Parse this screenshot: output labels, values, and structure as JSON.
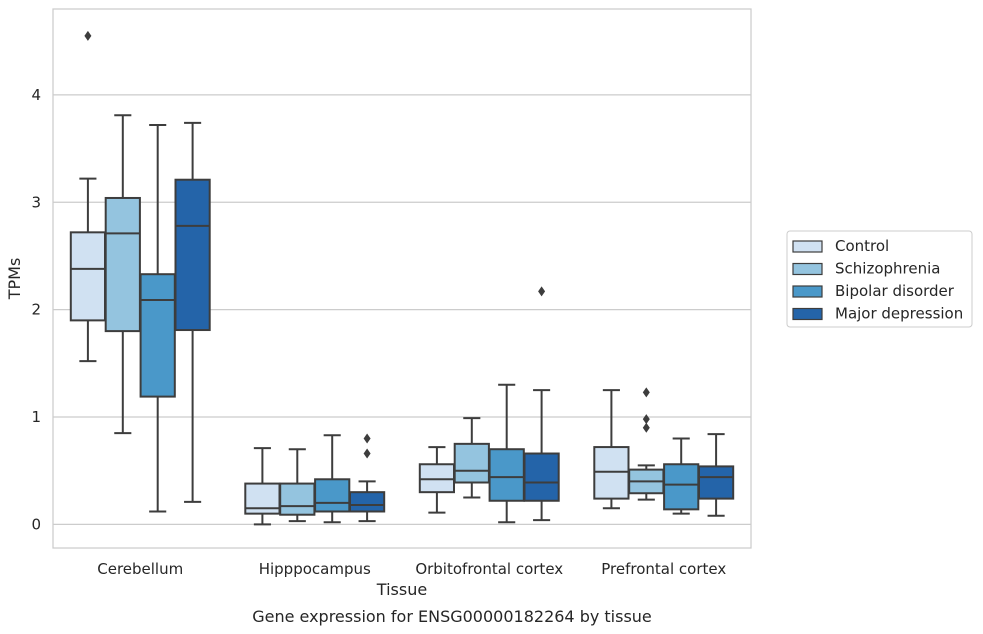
{
  "chart_data": {
    "type": "box",
    "caption": "Gene expression for ENSG00000182264 by tissue",
    "xlabel": "Tissue",
    "ylabel": "TPMs",
    "ylim": [
      -0.22,
      4.8
    ],
    "yticks": [
      0,
      1,
      2,
      3,
      4
    ],
    "grid": "horizontal",
    "legend_position": "right",
    "categories": [
      "Cerebellum",
      "Hipppocampus",
      "Orbitofrontal cortex",
      "Prefrontal cortex"
    ],
    "series": [
      {
        "name": "Control",
        "color": "#d0e1f2",
        "boxes": [
          {
            "whislo": 1.52,
            "q1": 1.9,
            "med": 2.38,
            "q3": 2.72,
            "whishi": 3.22,
            "fliers": [
              4.55
            ]
          },
          {
            "whislo": 0.0,
            "q1": 0.1,
            "med": 0.15,
            "q3": 0.38,
            "whishi": 0.71,
            "fliers": []
          },
          {
            "whislo": 0.11,
            "q1": 0.3,
            "med": 0.42,
            "q3": 0.56,
            "whishi": 0.72,
            "fliers": []
          },
          {
            "whislo": 0.15,
            "q1": 0.24,
            "med": 0.49,
            "q3": 0.72,
            "whishi": 1.25,
            "fliers": []
          }
        ]
      },
      {
        "name": "Schizophrenia",
        "color": "#94c4df",
        "boxes": [
          {
            "whislo": 0.85,
            "q1": 1.8,
            "med": 2.71,
            "q3": 3.04,
            "whishi": 3.81,
            "fliers": []
          },
          {
            "whislo": 0.03,
            "q1": 0.09,
            "med": 0.17,
            "q3": 0.38,
            "whishi": 0.7,
            "fliers": []
          },
          {
            "whislo": 0.25,
            "q1": 0.39,
            "med": 0.5,
            "q3": 0.75,
            "whishi": 0.99,
            "fliers": []
          },
          {
            "whislo": 0.23,
            "q1": 0.29,
            "med": 0.4,
            "q3": 0.51,
            "whishi": 0.55,
            "fliers": [
              0.9,
              0.98,
              1.23
            ]
          }
        ]
      },
      {
        "name": "Bipolar disorder",
        "color": "#4a98c9",
        "boxes": [
          {
            "whislo": 0.12,
            "q1": 1.19,
            "med": 2.09,
            "q3": 2.33,
            "whishi": 3.72,
            "fliers": []
          },
          {
            "whislo": 0.02,
            "q1": 0.12,
            "med": 0.2,
            "q3": 0.42,
            "whishi": 0.83,
            "fliers": []
          },
          {
            "whislo": 0.02,
            "q1": 0.22,
            "med": 0.44,
            "q3": 0.7,
            "whishi": 1.3,
            "fliers": []
          },
          {
            "whislo": 0.1,
            "q1": 0.14,
            "med": 0.37,
            "q3": 0.56,
            "whishi": 0.8,
            "fliers": []
          }
        ]
      },
      {
        "name": "Major depression",
        "color": "#2464a9",
        "boxes": [
          {
            "whislo": 0.21,
            "q1": 1.81,
            "med": 2.78,
            "q3": 3.21,
            "whishi": 3.74,
            "fliers": []
          },
          {
            "whislo": 0.03,
            "q1": 0.12,
            "med": 0.18,
            "q3": 0.3,
            "whishi": 0.4,
            "fliers": [
              0.66,
              0.8
            ]
          },
          {
            "whislo": 0.04,
            "q1": 0.22,
            "med": 0.39,
            "q3": 0.66,
            "whishi": 1.25,
            "fliers": [
              2.17
            ]
          },
          {
            "whislo": 0.08,
            "q1": 0.24,
            "med": 0.44,
            "q3": 0.54,
            "whishi": 0.84,
            "fliers": []
          }
        ]
      }
    ]
  }
}
